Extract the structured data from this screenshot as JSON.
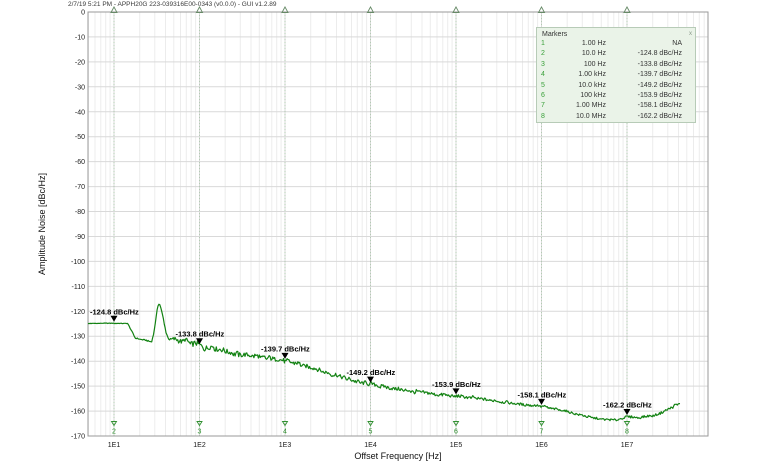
{
  "window": {
    "title": "2/7/19 5:21 PM - APPH20G 223-039316E00-0343 (v0.0.0) - GUI v1.2.89"
  },
  "markers_panel": {
    "title": "Markers",
    "close_label": "x",
    "rows": [
      {
        "n": "1",
        "freq": "1.00 Hz",
        "value": "NA"
      },
      {
        "n": "2",
        "freq": "10.0 Hz",
        "value": "-124.8 dBc/Hz"
      },
      {
        "n": "3",
        "freq": "100 Hz",
        "value": "-133.8 dBc/Hz"
      },
      {
        "n": "4",
        "freq": "1.00 kHz",
        "value": "-139.7 dBc/Hz"
      },
      {
        "n": "5",
        "freq": "10.0 kHz",
        "value": "-149.2 dBc/Hz"
      },
      {
        "n": "6",
        "freq": "100 kHz",
        "value": "-153.9 dBc/Hz"
      },
      {
        "n": "7",
        "freq": "1.00 MHz",
        "value": "-158.1 dBc/Hz"
      },
      {
        "n": "8",
        "freq": "10.0 MHz",
        "value": "-162.2 dBc/Hz"
      }
    ]
  },
  "chart_data": {
    "type": "line",
    "title": "",
    "xlabel": "Offset Frequency [Hz]",
    "ylabel": "Amplitude Noise [dBc/Hz]",
    "x_scale": "log10",
    "x_range_log10": [
      0.696,
      7.947
    ],
    "x_tick_labels": [
      "1E1",
      "1E2",
      "1E3",
      "1E4",
      "1E5",
      "1E6",
      "1E7"
    ],
    "x_tick_log10": [
      1,
      2,
      3,
      4,
      5,
      6,
      7
    ],
    "ylim": [
      -170,
      0
    ],
    "y_tick_step": 10,
    "grid": true,
    "legend_position": "none",
    "trace_color": "#128212",
    "marker_accent_color": "#2f8f2f",
    "series": [
      {
        "name": "amplitude-noise-trace",
        "points_log10hz_dbchz": [
          [
            0.696,
            -124.9
          ],
          [
            0.9,
            -124.8
          ],
          [
            1.0,
            -124.8
          ],
          [
            1.16,
            -124.9
          ],
          [
            1.2,
            -127.5
          ],
          [
            1.25,
            -130.8
          ],
          [
            1.32,
            -131.4
          ],
          [
            1.4,
            -131.8
          ],
          [
            1.44,
            -132.4
          ],
          [
            1.47,
            -128.0
          ],
          [
            1.5,
            -120.0
          ],
          [
            1.53,
            -116.5
          ],
          [
            1.56,
            -120.0
          ],
          [
            1.59,
            -126.0
          ],
          [
            1.63,
            -130.3
          ],
          [
            1.66,
            -131.4
          ],
          [
            1.72,
            -130.9
          ],
          [
            1.78,
            -132.3
          ],
          [
            1.83,
            -131.2
          ],
          [
            1.88,
            -133.2
          ],
          [
            1.94,
            -132.6
          ],
          [
            2.0,
            -133.8
          ],
          [
            2.08,
            -134.8
          ],
          [
            2.16,
            -134.2
          ],
          [
            2.25,
            -135.8
          ],
          [
            2.35,
            -136.3
          ],
          [
            2.45,
            -137.3
          ],
          [
            2.58,
            -137.6
          ],
          [
            2.7,
            -138.4
          ],
          [
            2.85,
            -139.0
          ],
          [
            3.0,
            -139.7
          ],
          [
            3.12,
            -140.8
          ],
          [
            3.25,
            -142.0
          ],
          [
            3.4,
            -143.6
          ],
          [
            3.55,
            -145.2
          ],
          [
            3.7,
            -146.9
          ],
          [
            3.85,
            -148.2
          ],
          [
            4.0,
            -149.2
          ],
          [
            4.15,
            -150.3
          ],
          [
            4.3,
            -151.3
          ],
          [
            4.5,
            -152.2
          ],
          [
            4.7,
            -153.0
          ],
          [
            4.85,
            -153.5
          ],
          [
            5.0,
            -153.9
          ],
          [
            5.15,
            -154.4
          ],
          [
            5.3,
            -155.1
          ],
          [
            5.5,
            -156.1
          ],
          [
            5.7,
            -157.0
          ],
          [
            5.85,
            -157.6
          ],
          [
            6.0,
            -158.1
          ],
          [
            6.15,
            -159.1
          ],
          [
            6.3,
            -160.2
          ],
          [
            6.45,
            -161.5
          ],
          [
            6.6,
            -162.8
          ],
          [
            6.75,
            -163.5
          ],
          [
            6.88,
            -163.7
          ],
          [
            7.0,
            -162.2
          ],
          [
            7.08,
            -162.6
          ],
          [
            7.18,
            -162.5
          ],
          [
            7.3,
            -161.8
          ],
          [
            7.42,
            -160.3
          ],
          [
            7.52,
            -158.6
          ],
          [
            7.6,
            -157.2
          ],
          [
            7.62,
            -156.8
          ]
        ],
        "noise_amp_profile_log10hz_db": [
          [
            0.696,
            0.12
          ],
          [
            1.16,
            0.12
          ],
          [
            1.25,
            0.3
          ],
          [
            1.45,
            0.3
          ],
          [
            1.66,
            0.9
          ],
          [
            1.8,
            1.5
          ],
          [
            2.1,
            1.5
          ],
          [
            2.5,
            1.2
          ],
          [
            3.0,
            1.1
          ],
          [
            3.5,
            1.1
          ],
          [
            4.0,
            1.0
          ],
          [
            4.5,
            0.9
          ],
          [
            5.0,
            0.85
          ],
          [
            5.5,
            0.7
          ],
          [
            6.0,
            0.6
          ],
          [
            6.5,
            0.55
          ],
          [
            7.0,
            0.55
          ],
          [
            7.4,
            0.6
          ],
          [
            7.62,
            0.8
          ]
        ]
      }
    ],
    "annotations": [
      {
        "marker": "2",
        "log10hz": 1,
        "dbchz": -124.8,
        "label": "-124.8 dBc/Hz"
      },
      {
        "marker": "3",
        "log10hz": 2,
        "dbchz": -133.8,
        "label": "-133.8 dBc/Hz"
      },
      {
        "marker": "4",
        "log10hz": 3,
        "dbchz": -139.7,
        "label": "-139.7 dBc/Hz"
      },
      {
        "marker": "5",
        "log10hz": 4,
        "dbchz": -149.2,
        "label": "-149.2 dBc/Hz"
      },
      {
        "marker": "6",
        "log10hz": 5,
        "dbchz": -153.9,
        "label": "-153.9 dBc/Hz"
      },
      {
        "marker": "7",
        "log10hz": 6,
        "dbchz": -158.1,
        "label": "-158.1 dBc/Hz"
      },
      {
        "marker": "8",
        "log10hz": 7,
        "dbchz": -162.2,
        "label": "-162.2 dBc/Hz"
      }
    ],
    "marker_lines": [
      {
        "n": "2",
        "log10hz": 1
      },
      {
        "n": "3",
        "log10hz": 2
      },
      {
        "n": "4",
        "log10hz": 3
      },
      {
        "n": "5",
        "log10hz": 4
      },
      {
        "n": "6",
        "log10hz": 5
      },
      {
        "n": "7",
        "log10hz": 6
      },
      {
        "n": "8",
        "log10hz": 7
      }
    ]
  }
}
